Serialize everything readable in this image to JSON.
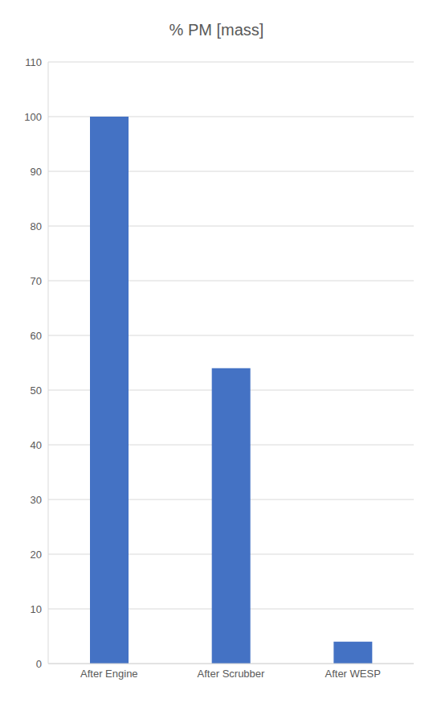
{
  "chart_data": {
    "type": "bar",
    "title": "% PM [mass]",
    "categories": [
      "After Engine",
      "After Scrubber",
      "After WESP"
    ],
    "values": [
      100,
      54,
      4
    ],
    "color": "#4472c4",
    "ylim": [
      0,
      110
    ],
    "yticks": [
      0,
      10,
      20,
      30,
      40,
      50,
      60,
      70,
      80,
      90,
      100,
      110
    ],
    "grid": true
  }
}
